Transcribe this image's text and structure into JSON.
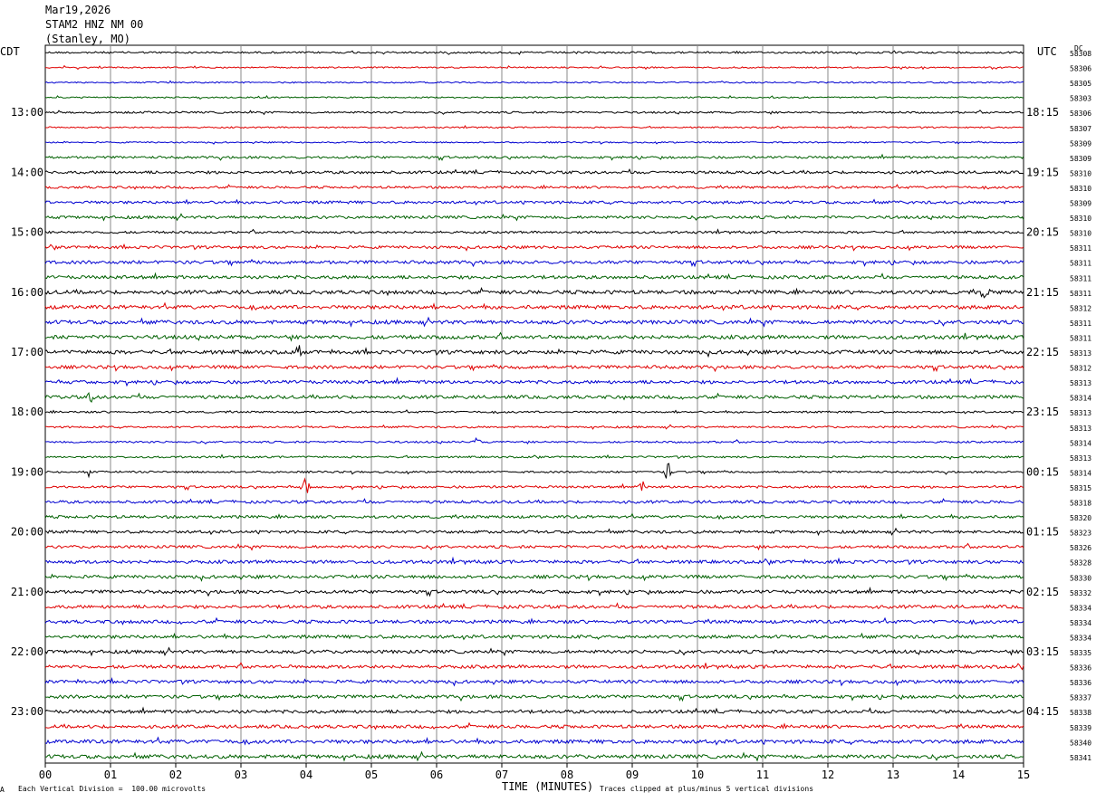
{
  "header": {
    "date": "Mar19,2026",
    "station": "STAM2 HNZ NM 00",
    "location": "(Stanley, MO)"
  },
  "left_tz": "CDT",
  "right_tz": "UTC",
  "dc_label": "DC",
  "footer": {
    "scale_note": "Each Vertical Division =  100.00 microvolts",
    "xlabel": "TIME (MINUTES)",
    "clip_note": "Traces clipped at plus/minus 5 vertical divisions",
    "corner_mark": "A"
  },
  "colors": {
    "trace_cycle": [
      "#000000",
      "#e00000",
      "#0000d0",
      "#006000"
    ],
    "grid": "#888888"
  },
  "chart_data": {
    "type": "line",
    "title": "",
    "xlabel": "TIME (MINUTES)",
    "xlim": [
      0,
      15
    ],
    "x_ticks": [
      "00",
      "01",
      "02",
      "03",
      "04",
      "05",
      "06",
      "07",
      "08",
      "09",
      "10",
      "11",
      "12",
      "13",
      "14",
      "15"
    ],
    "grid": true,
    "trace_count": 48,
    "left_hour_labels": [
      "13:00",
      "14:00",
      "15:00",
      "16:00",
      "17:00",
      "18:00",
      "19:00",
      "20:00",
      "21:00",
      "22:00",
      "23:00"
    ],
    "right_hour_labels": [
      "18:15",
      "19:15",
      "20:15",
      "21:15",
      "22:15",
      "23:15",
      "00:15",
      "01:15",
      "02:15",
      "03:15",
      "04:15"
    ],
    "hour_label_rows": [
      4,
      8,
      12,
      16,
      20,
      24,
      28,
      32,
      36,
      40,
      44
    ],
    "dc_values": [
      "58308",
      "58306",
      "58305",
      "58303",
      "58306",
      "58307",
      "58309",
      "58309",
      "58310",
      "58310",
      "58309",
      "58310",
      "58310",
      "58311",
      "58311",
      "58311",
      "58311",
      "58312",
      "58311",
      "58311",
      "58313",
      "58312",
      "58313",
      "58314",
      "58313",
      "58313",
      "58314",
      "58313",
      "58314",
      "58315",
      "58318",
      "58320",
      "58323",
      "58326",
      "58328",
      "58330",
      "58332",
      "58334",
      "58334",
      "58334",
      "58335",
      "58336",
      "58336",
      "58337",
      "58338",
      "58339",
      "58340",
      "58341"
    ],
    "noise_level": [
      2,
      1.5,
      1.5,
      1.5,
      2,
      1.5,
      1.5,
      2.5,
      3,
      2.5,
      3,
      3,
      2.5,
      3,
      3.5,
      3.5,
      4,
      4,
      4,
      4,
      4,
      3.5,
      3.5,
      3.5,
      2,
      2,
      2,
      2,
      2,
      2.5,
      3,
      3,
      3,
      3,
      3.5,
      3.5,
      3.5,
      3.5,
      3.5,
      3.5,
      3.5,
      3.5,
      3.5,
      3.5,
      3.5,
      3.5,
      4,
      4
    ],
    "events": [
      {
        "trace": 26,
        "minute": 6.6,
        "amp": 8
      },
      {
        "trace": 28,
        "minute": 0.65,
        "amp": 6
      },
      {
        "trace": 28,
        "minute": 9.55,
        "amp": 12
      },
      {
        "trace": 29,
        "minute": 3.99,
        "amp": 10
      },
      {
        "trace": 29,
        "minute": 9.15,
        "amp": 8
      },
      {
        "trace": 23,
        "minute": 0.7,
        "amp": 7
      },
      {
        "trace": 20,
        "minute": 3.9,
        "amp": 7
      },
      {
        "trace": 16,
        "minute": 14.4,
        "amp": 7
      }
    ]
  }
}
